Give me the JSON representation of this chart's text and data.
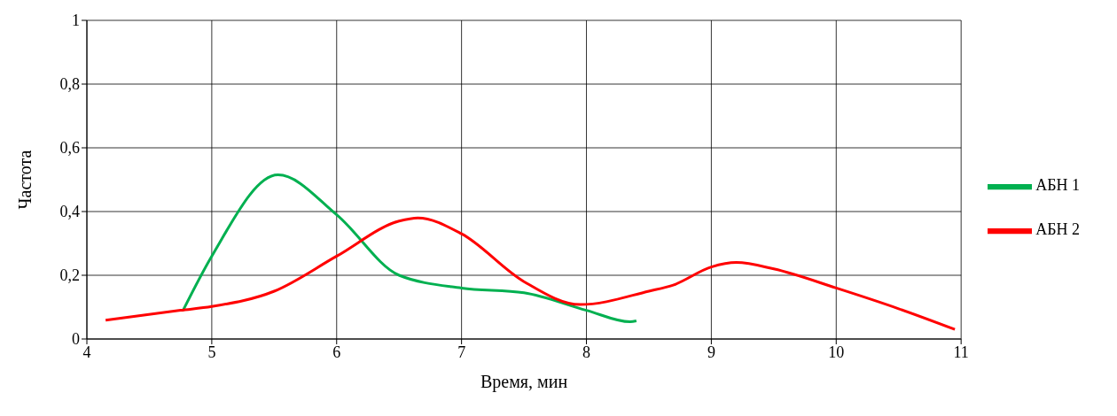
{
  "chart_data": {
    "type": "line",
    "xlabel": "Время, мин",
    "ylabel": "Частота",
    "xlim": [
      4,
      11
    ],
    "xticks": [
      4,
      5,
      6,
      7,
      8,
      9,
      10,
      11
    ],
    "ylim": [
      0,
      1
    ],
    "yticks": [
      0,
      {
        "value": 0.2,
        "label": "0,2"
      },
      {
        "value": 0.4,
        "label": "0,4"
      },
      {
        "value": 0.6,
        "label": "0,6"
      },
      {
        "value": 0.8,
        "label": "0,8"
      },
      1
    ],
    "grid": true,
    "legend": "right",
    "marker": "none",
    "line_style": "solid",
    "series": [
      {
        "name": "АБН 1",
        "color": "#00b050",
        "x": [
          4.77,
          5.0,
          5.53,
          6.0,
          6.5,
          7.0,
          7.5,
          8.0,
          8.35,
          8.4
        ],
        "values": [
          0.09,
          0.26,
          0.515,
          0.39,
          0.2,
          0.16,
          0.145,
          0.09,
          0.054,
          0.057
        ]
      },
      {
        "name": "АБН 2",
        "color": "#ff0000",
        "x": [
          4.15,
          4.75,
          5.0,
          5.5,
          6.0,
          6.5,
          6.65,
          7.0,
          7.5,
          7.95,
          8.5,
          8.7,
          9.0,
          9.2,
          9.5,
          10.0,
          10.5,
          10.95
        ],
        "values": [
          0.059,
          0.09,
          0.102,
          0.15,
          0.26,
          0.37,
          0.38,
          0.33,
          0.18,
          0.108,
          0.15,
          0.17,
          0.226,
          0.24,
          0.22,
          0.16,
          0.095,
          0.03
        ]
      }
    ]
  }
}
